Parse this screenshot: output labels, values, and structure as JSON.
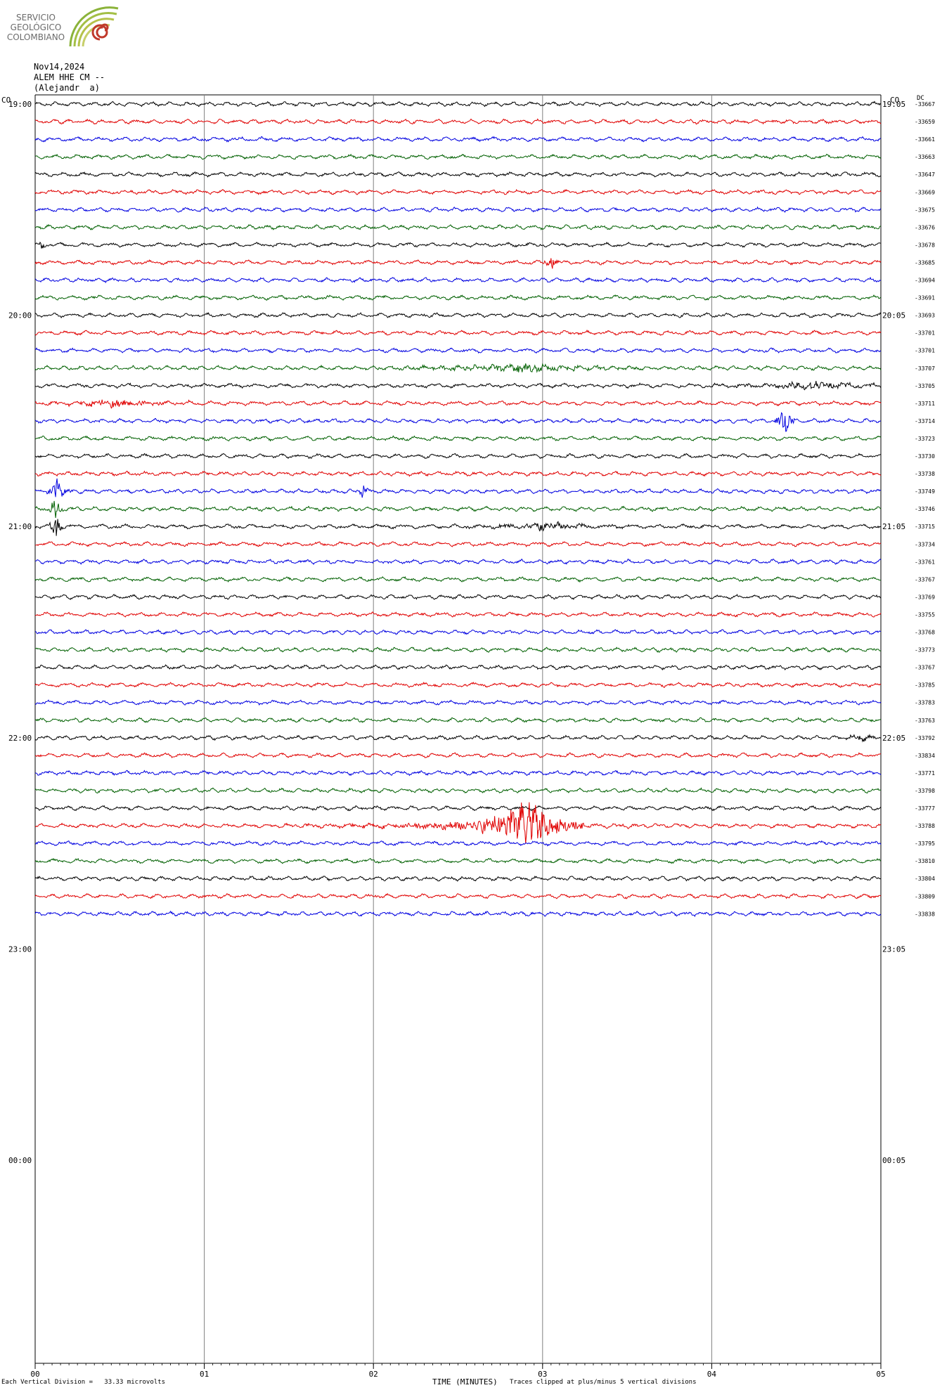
{
  "logo": {
    "line1": "SERVICIO",
    "line2": "GEOLÓGICO",
    "line3": "COLOMBIANO",
    "colors": {
      "arc_green": "#8bb33a",
      "arc_olive": "#b5c24a",
      "spiral_red": "#c0392b"
    }
  },
  "header": {
    "date": "Nov14,2024",
    "station": "ALEM HHE CM --",
    "name": "(Alejandr  a)"
  },
  "chart_data": {
    "type": "line",
    "left_tz": "CO",
    "right_tz": "CO",
    "right_col_header": "DC",
    "hour_labels_left": [
      "19:00",
      "20:00",
      "21:00",
      "22:00",
      "23:00",
      "00:00"
    ],
    "hour_labels_right": [
      "19:05",
      "20:05",
      "21:05",
      "22:05",
      "23:05",
      "00:05"
    ],
    "x_ticks": [
      "00",
      "01",
      "02",
      "03",
      "04",
      "05"
    ],
    "xlabel": "TIME (MINUTES)",
    "xlim": [
      0,
      5
    ],
    "trace_colors": [
      "#000000",
      "#e00000",
      "#0000e0",
      "#006000"
    ],
    "dc_values": [
      "-33667",
      "-33659",
      "-33661",
      "-33663",
      "-33647",
      "-33669",
      "-33675",
      "-33676",
      "-33678",
      "-33685",
      "-33694",
      "-33691",
      "-33693",
      "-33701",
      "-33701",
      "-33707",
      "-33705",
      "-33711",
      "-33714",
      "-33723",
      "-33730",
      "-33738",
      "-33749",
      "-33746",
      "-33715",
      "-33734",
      "-33761",
      "-33767",
      "-33769",
      "-33755",
      "-33768",
      "-33773",
      "-33767",
      "-33785",
      "-33783",
      "-33763",
      "-33792",
      "-33834",
      "-33771",
      "-33798",
      "-33777",
      "-33788",
      "-33795",
      "-33810",
      "-33804",
      "-33809",
      "-33838"
    ],
    "events": [
      {
        "trace": 8,
        "minute": 0.04,
        "amp": 0.9,
        "dur": 0.02
      },
      {
        "trace": 9,
        "minute": 3.05,
        "amp": 0.9,
        "dur": 0.06
      },
      {
        "trace": 15,
        "minute": 2.9,
        "amp": 0.45,
        "dur": 1.0
      },
      {
        "trace": 16,
        "minute": 4.6,
        "amp": 0.5,
        "dur": 0.6
      },
      {
        "trace": 17,
        "minute": 0.5,
        "amp": 0.5,
        "dur": 0.5
      },
      {
        "trace": 18,
        "minute": 4.43,
        "amp": 2.3,
        "dur": 0.06
      },
      {
        "trace": 22,
        "minute": 0.13,
        "amp": 1.6,
        "dur": 0.08
      },
      {
        "trace": 22,
        "minute": 1.94,
        "amp": 1.2,
        "dur": 0.04
      },
      {
        "trace": 23,
        "minute": 0.12,
        "amp": 1.8,
        "dur": 0.05
      },
      {
        "trace": 24,
        "minute": 0.12,
        "amp": 2.2,
        "dur": 0.04
      },
      {
        "trace": 24,
        "minute": 3.0,
        "amp": 0.5,
        "dur": 0.6
      },
      {
        "trace": 36,
        "minute": 4.9,
        "amp": 0.5,
        "dur": 0.15
      },
      {
        "trace": 41,
        "minute": 2.9,
        "amp": 3.5,
        "dur": 0.35
      },
      {
        "trace": 41,
        "minute": 2.6,
        "amp": 0.6,
        "dur": 1.2
      }
    ]
  },
  "footer": {
    "left": "Each Vertical Division =   33.33 microvolts",
    "right": "Traces clipped at plus/minus 5 vertical divisions"
  }
}
